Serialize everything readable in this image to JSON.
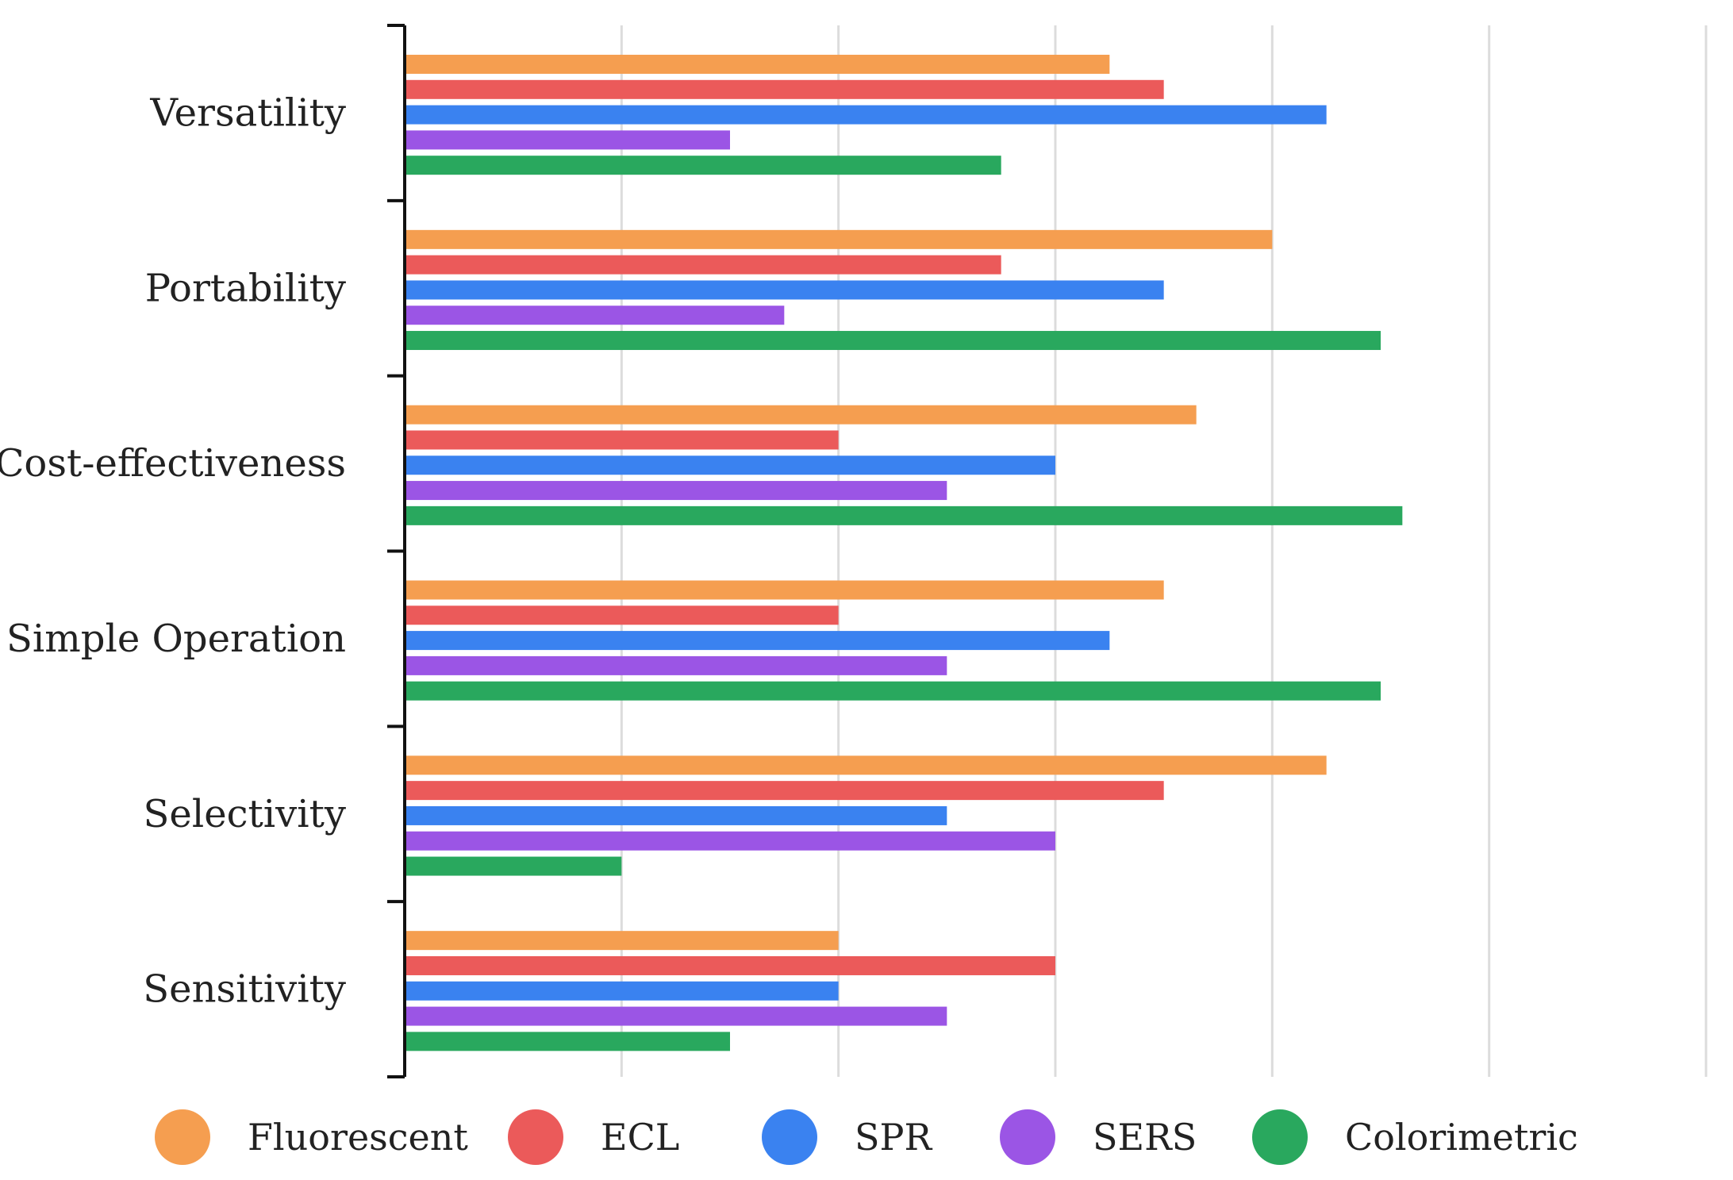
{
  "chart_data": {
    "type": "bar",
    "orientation": "horizontal",
    "title": "",
    "xlabel": "",
    "ylabel": "",
    "categories": [
      "Versatility",
      "Portability",
      "Cost-effectiveness",
      "Simple Operation",
      "Selectivity",
      "Sensitivity"
    ],
    "series": [
      {
        "name": "Fluorescent",
        "color": "#F59E50",
        "values": [
          6.5,
          8.0,
          7.3,
          7.0,
          8.5,
          4.0
        ]
      },
      {
        "name": "ECL",
        "color": "#EB5A5A",
        "values": [
          7.0,
          5.5,
          4.0,
          4.0,
          7.0,
          6.0
        ]
      },
      {
        "name": "SPR",
        "color": "#3A82F0",
        "values": [
          8.5,
          7.0,
          6.0,
          6.5,
          5.0,
          4.0
        ]
      },
      {
        "name": "SERS",
        "color": "#9B55E5",
        "values": [
          3.0,
          3.5,
          5.0,
          5.0,
          6.0,
          5.0
        ]
      },
      {
        "name": "Colorimetric",
        "color": "#29A85E",
        "values": [
          5.5,
          9.0,
          9.2,
          9.0,
          2.0,
          3.0
        ]
      }
    ],
    "xlim": [
      0,
      12
    ],
    "grid": true,
    "tick_labels_shown": false,
    "legend_position": "bottom"
  }
}
